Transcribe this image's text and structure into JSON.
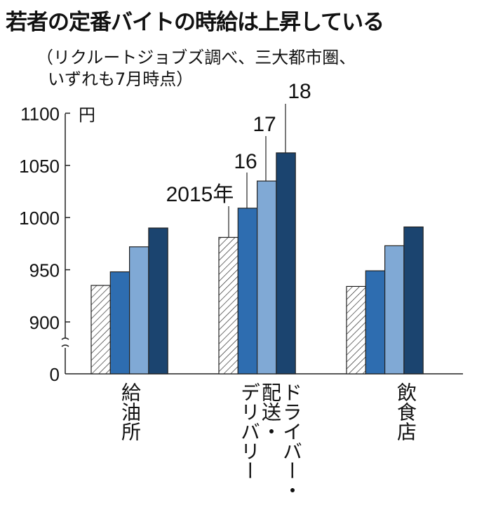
{
  "title": "若者の定番バイトの時給は上昇している",
  "subtitle_lines": [
    "（リクルートジョブズ調べ、三大都市圏、",
    "いずれも7月時点）"
  ],
  "chart_data": {
    "type": "bar",
    "title": "若者の定番バイトの時給は上昇している",
    "unit": "円",
    "categories": [
      "給油所",
      "ドライバー・\n配送・\nデリバリー",
      "飲食店"
    ],
    "series": [
      {
        "name": "2015年",
        "values": [
          935,
          981,
          934
        ],
        "color": "hatched"
      },
      {
        "name": "16",
        "values": [
          948,
          1009,
          949
        ],
        "color": "#2e6db0"
      },
      {
        "name": "17",
        "values": [
          972,
          1035,
          973
        ],
        "color": "#80a9d5"
      },
      {
        "name": "18",
        "values": [
          990,
          1062,
          991
        ],
        "color": "#1b446f"
      }
    ],
    "yticks": [
      0,
      900,
      950,
      1000,
      1050,
      1100
    ],
    "ytick_labels": [
      "0",
      "900",
      "950",
      "1000",
      "1050",
      "1100"
    ],
    "ylim": [
      900,
      1100
    ],
    "axis_break": true,
    "legend": "leader-lines on middle group"
  }
}
